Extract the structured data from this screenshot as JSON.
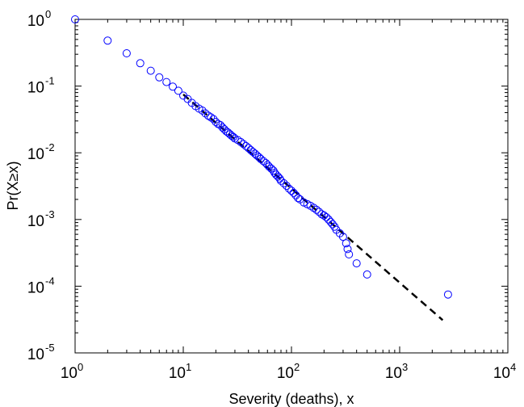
{
  "chart_data": {
    "type": "scatter",
    "title": "",
    "xlabel": "Severity (deaths), x",
    "ylabel": "Pr(X≥x)",
    "x_scale": "log",
    "y_scale": "log",
    "xlim": [
      1,
      10000
    ],
    "ylim": [
      1e-05,
      1
    ],
    "x_ticks": [
      {
        "base": "10",
        "exp": "0",
        "value": 1
      },
      {
        "base": "10",
        "exp": "1",
        "value": 10
      },
      {
        "base": "10",
        "exp": "2",
        "value": 100
      },
      {
        "base": "10",
        "exp": "3",
        "value": 1000
      },
      {
        "base": "10",
        "exp": "4",
        "value": 10000
      }
    ],
    "y_ticks": [
      {
        "base": "10",
        "exp": "0",
        "value": 1
      },
      {
        "base": "10",
        "exp": "-1",
        "value": 0.1
      },
      {
        "base": "10",
        "exp": "-2",
        "value": 0.01
      },
      {
        "base": "10",
        "exp": "-3",
        "value": 0.001
      },
      {
        "base": "10",
        "exp": "-4",
        "value": 0.0001
      },
      {
        "base": "10",
        "exp": "-5",
        "value": 1e-05
      }
    ],
    "grid": false,
    "legend": "none",
    "series": [
      {
        "kind": "markers",
        "marker": "open-circle",
        "color": "#0000ff",
        "points": [
          [
            1,
            1
          ],
          [
            2,
            0.48
          ],
          [
            3,
            0.31
          ],
          [
            4,
            0.22
          ],
          [
            5,
            0.17
          ],
          [
            6,
            0.135
          ],
          [
            7,
            0.115
          ],
          [
            8,
            0.098
          ],
          [
            9,
            0.085
          ],
          [
            10,
            0.072
          ],
          [
            11,
            0.064
          ],
          [
            12,
            0.056
          ],
          [
            13,
            0.05
          ],
          [
            14,
            0.046
          ],
          [
            15,
            0.043
          ],
          [
            16,
            0.039
          ],
          [
            17,
            0.036
          ],
          [
            18,
            0.034
          ],
          [
            19,
            0.032
          ],
          [
            20,
            0.029
          ],
          [
            21,
            0.027
          ],
          [
            22,
            0.026
          ],
          [
            23,
            0.024
          ],
          [
            24,
            0.0225
          ],
          [
            25,
            0.021
          ],
          [
            26,
            0.02
          ],
          [
            27,
            0.019
          ],
          [
            28,
            0.018
          ],
          [
            29,
            0.0172
          ],
          [
            30,
            0.0164
          ],
          [
            32,
            0.0155
          ],
          [
            34,
            0.0145
          ],
          [
            36,
            0.0135
          ],
          [
            38,
            0.0126
          ],
          [
            40,
            0.0118
          ],
          [
            42,
            0.011
          ],
          [
            44,
            0.0103
          ],
          [
            46,
            0.0097
          ],
          [
            48,
            0.0091
          ],
          [
            50,
            0.0086
          ],
          [
            52,
            0.0081
          ],
          [
            55,
            0.0075
          ],
          [
            58,
            0.007
          ],
          [
            60,
            0.0066
          ],
          [
            62,
            0.0062
          ],
          [
            65,
            0.0058
          ],
          [
            68,
            0.0054
          ],
          [
            70,
            0.005
          ],
          [
            72,
            0.0047
          ],
          [
            75,
            0.0044
          ],
          [
            78,
            0.0041
          ],
          [
            80,
            0.0038
          ],
          [
            85,
            0.0035
          ],
          [
            90,
            0.0032
          ],
          [
            95,
            0.0029
          ],
          [
            100,
            0.0027
          ],
          [
            105,
            0.0025
          ],
          [
            110,
            0.0023
          ],
          [
            115,
            0.0021
          ],
          [
            120,
            0.002
          ],
          [
            130,
            0.0018
          ],
          [
            140,
            0.0017
          ],
          [
            150,
            0.0016
          ],
          [
            160,
            0.0015
          ],
          [
            170,
            0.0014
          ],
          [
            180,
            0.0013
          ],
          [
            190,
            0.0012
          ],
          [
            200,
            0.00115
          ],
          [
            210,
            0.00108
          ],
          [
            220,
            0.001
          ],
          [
            230,
            0.00092
          ],
          [
            240,
            0.00085
          ],
          [
            250,
            0.00078
          ],
          [
            260,
            0.0007
          ],
          [
            280,
            0.00062
          ],
          [
            300,
            0.00055
          ],
          [
            320,
            0.00044
          ],
          [
            330,
            0.00036
          ],
          [
            340,
            0.0003
          ],
          [
            400,
            0.00022
          ],
          [
            500,
            0.00015
          ],
          [
            2800,
            7.5e-05
          ]
        ]
      },
      {
        "kind": "line",
        "style": "dashed",
        "color": "#000000",
        "points": [
          [
            10,
            0.075
          ],
          [
            2500,
            3.1e-05
          ]
        ]
      }
    ]
  }
}
